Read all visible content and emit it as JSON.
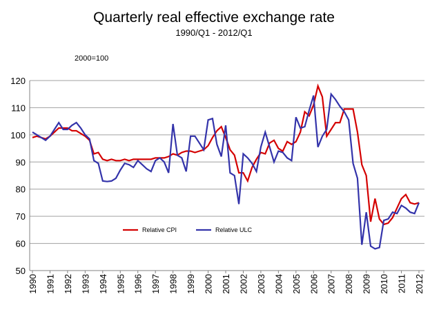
{
  "chart_data": {
    "type": "line",
    "title": "Quarterly real effective exchange rate",
    "subtitle": "1990/Q1 - 2012/Q1",
    "annotation": "2000=100",
    "categories": [
      "1990",
      null,
      null,
      null,
      "1991",
      null,
      null,
      null,
      "1992",
      null,
      null,
      null,
      "1993",
      null,
      null,
      null,
      "1994",
      null,
      null,
      null,
      "1995",
      null,
      null,
      null,
      "1996",
      null,
      null,
      null,
      "1997",
      null,
      null,
      null,
      "1998",
      null,
      null,
      null,
      "1999",
      null,
      null,
      null,
      "2000",
      null,
      null,
      null,
      "2001",
      null,
      null,
      null,
      "2002",
      null,
      null,
      null,
      "2003",
      null,
      null,
      null,
      "2004",
      null,
      null,
      null,
      "2005",
      null,
      null,
      null,
      "2006",
      null,
      null,
      null,
      "2007",
      null,
      null,
      null,
      "2008",
      null,
      null,
      null,
      "2009",
      null,
      null,
      null,
      "2010",
      null,
      null,
      null,
      "2011",
      null,
      null,
      null,
      "2012"
    ],
    "series": [
      {
        "name": "Relative CPI",
        "color": "#d40000",
        "values": [
          99,
          99.5,
          99,
          98.5,
          99.5,
          101,
          102.5,
          102.5,
          102.5,
          101.5,
          101.5,
          100.5,
          99.5,
          98,
          93,
          93.5,
          91,
          90.5,
          91,
          90.5,
          90.5,
          91,
          90.5,
          91,
          91,
          91,
          91,
          91,
          91.5,
          91.5,
          91.5,
          92,
          93,
          92.5,
          93.5,
          94,
          94,
          93.5,
          94,
          94.5,
          96,
          99,
          101.5,
          103,
          99,
          94.5,
          92.5,
          86,
          86,
          83,
          88,
          91,
          93.5,
          93,
          97,
          98,
          95,
          94,
          97.5,
          96.5,
          97.5,
          101,
          108.5,
          107,
          111,
          118,
          114,
          99.5,
          102,
          104.5,
          104.5,
          109.5,
          109.5,
          109.5,
          101,
          89,
          85,
          68,
          76.5,
          69,
          67,
          67.5,
          69.5,
          73,
          76.5,
          78,
          75,
          74.5,
          75
        ]
      },
      {
        "name": "Relative ULC",
        "color": "#3333aa",
        "values": [
          101,
          100,
          99,
          98,
          99.5,
          102,
          104.5,
          102,
          102,
          103.5,
          104.5,
          102.5,
          100,
          98.5,
          90.5,
          89.5,
          83,
          82.8,
          83,
          84,
          87,
          89.5,
          89,
          88,
          90.5,
          89,
          87.5,
          86.5,
          90.5,
          91.5,
          90,
          86,
          104,
          92.5,
          91.5,
          86.5,
          99.5,
          99.5,
          97,
          94.5,
          105.5,
          106,
          96.5,
          92,
          103.5,
          86,
          85,
          74.5,
          93,
          91.5,
          89.5,
          86.5,
          95.5,
          101,
          95.5,
          90,
          94,
          93.5,
          91.5,
          90.5,
          106.5,
          102.5,
          103,
          109,
          114.5,
          95.5,
          99.5,
          102,
          115,
          113,
          110.5,
          108.5,
          105.5,
          89.5,
          84,
          59.5,
          71.5,
          59,
          58,
          58.5,
          68.5,
          69,
          71.5,
          71,
          74,
          73,
          71.5,
          71,
          75
        ]
      }
    ],
    "ylim": [
      50,
      120
    ],
    "yticks": [
      50,
      60,
      70,
      80,
      90,
      100,
      110,
      120
    ],
    "grid": true,
    "legend": "lower left"
  }
}
